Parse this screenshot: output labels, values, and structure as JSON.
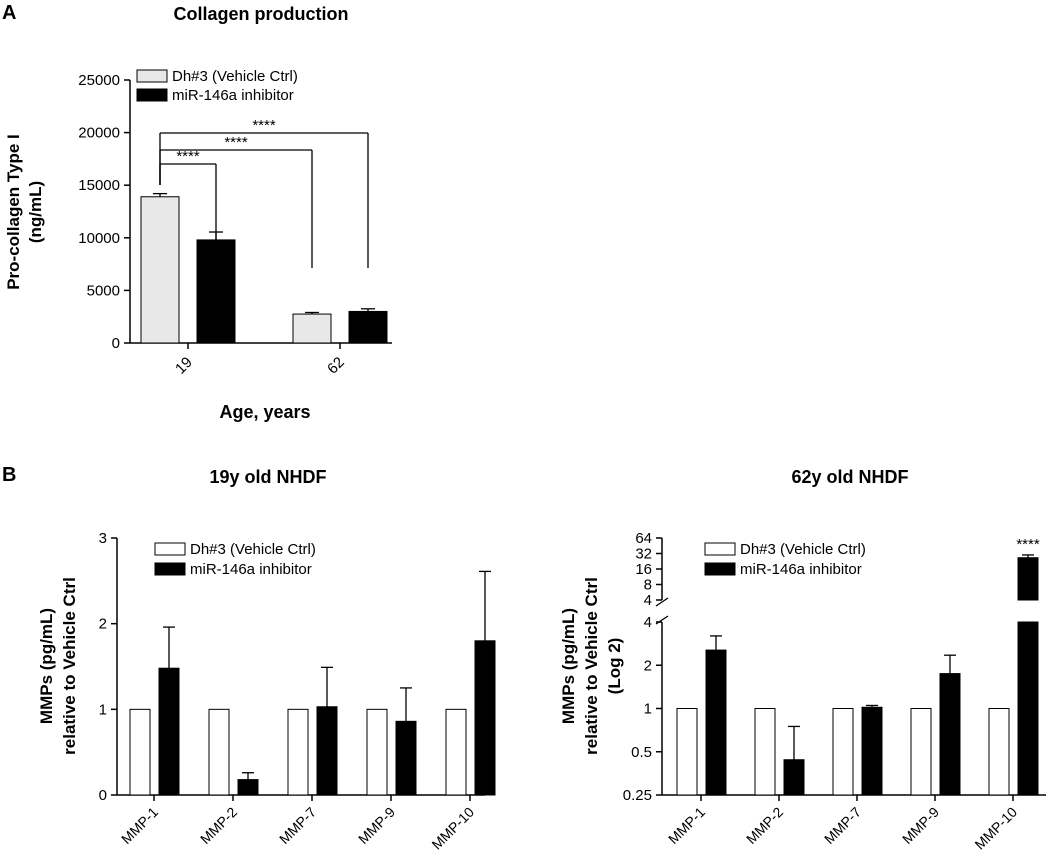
{
  "panels": {
    "a_label": "A",
    "b_label": "B"
  },
  "colors": {
    "vehicle_fill_a": "#e8e8e8",
    "vehicle_fill_b": "#ffffff",
    "inhibitor_fill": "#000000",
    "axis": "#000000"
  },
  "chart_data": [
    {
      "id": "collagen",
      "type": "bar",
      "title": "Collagen production",
      "xlabel": "Age, years",
      "ylabel_line1": "Pro-collagen Type I",
      "ylabel_line2": "(ng/mL)",
      "categories": [
        "19",
        "62"
      ],
      "ylim": [
        0,
        25000
      ],
      "yticks": [
        "0",
        "5000",
        "10000",
        "15000",
        "20000",
        "25000"
      ],
      "legend": [
        "Dh#3 (Vehicle Ctrl)",
        "miR-146a inhibitor"
      ],
      "series": [
        {
          "name": "Dh#3 (Vehicle Ctrl)",
          "values": [
            13900,
            2750
          ],
          "errors": [
            300,
            150
          ]
        },
        {
          "name": "miR-146a inhibitor",
          "values": [
            9800,
            3000
          ],
          "errors": [
            750,
            250
          ]
        }
      ],
      "annotations": [
        "****",
        "****",
        "****"
      ]
    },
    {
      "id": "mmp19",
      "type": "bar",
      "title": "19y old NHDF",
      "ylabel_line1": "MMPs (pg/mL)",
      "ylabel_line2": "relative to Vehicle Ctrl",
      "categories": [
        "MMP-1",
        "MMP-2",
        "MMP-7",
        "MMP-9",
        "MMP-10"
      ],
      "ylim": [
        0,
        3
      ],
      "yticks": [
        "0",
        "1",
        "2",
        "3"
      ],
      "legend": [
        "Dh#3 (Vehicle Ctrl)",
        "miR-146a inhibitor"
      ],
      "series": [
        {
          "name": "Dh#3 (Vehicle Ctrl)",
          "values": [
            1,
            1,
            1,
            1,
            1
          ],
          "errors": [
            0,
            0,
            0,
            0,
            0
          ]
        },
        {
          "name": "miR-146a inhibitor",
          "values": [
            1.48,
            0.18,
            1.03,
            0.86,
            1.8
          ],
          "errors": [
            0.48,
            0.08,
            0.46,
            0.39,
            0.81
          ]
        }
      ]
    },
    {
      "id": "mmp62",
      "type": "bar",
      "title": "62y old NHDF",
      "ylabel_line1": "MMPs (pg/mL)",
      "ylabel_line2": "relative to Vehicle Ctrl",
      "ylabel_line3": "(Log 2)",
      "categories": [
        "MMP-1",
        "MMP-2",
        "MMP-7",
        "MMP-9",
        "MMP-10"
      ],
      "yscale": "log2 with axis break between 4 and 4",
      "yticks_lower": [
        "0.25",
        "0.5",
        "1",
        "2",
        "4"
      ],
      "yticks_upper": [
        "4",
        "8",
        "16",
        "32",
        "64"
      ],
      "legend": [
        "Dh#3 (Vehicle Ctrl)",
        "miR-146a inhibitor"
      ],
      "series": [
        {
          "name": "Dh#3 (Vehicle Ctrl)",
          "values": [
            1,
            1,
            1,
            1,
            1
          ]
        },
        {
          "name": "miR-146a inhibitor",
          "values": [
            2.55,
            0.44,
            1.02,
            1.75,
            26.5
          ],
          "error_tops": [
            3.2,
            0.75,
            1.05,
            2.35,
            30
          ]
        }
      ],
      "annotations": [
        "****"
      ]
    }
  ]
}
